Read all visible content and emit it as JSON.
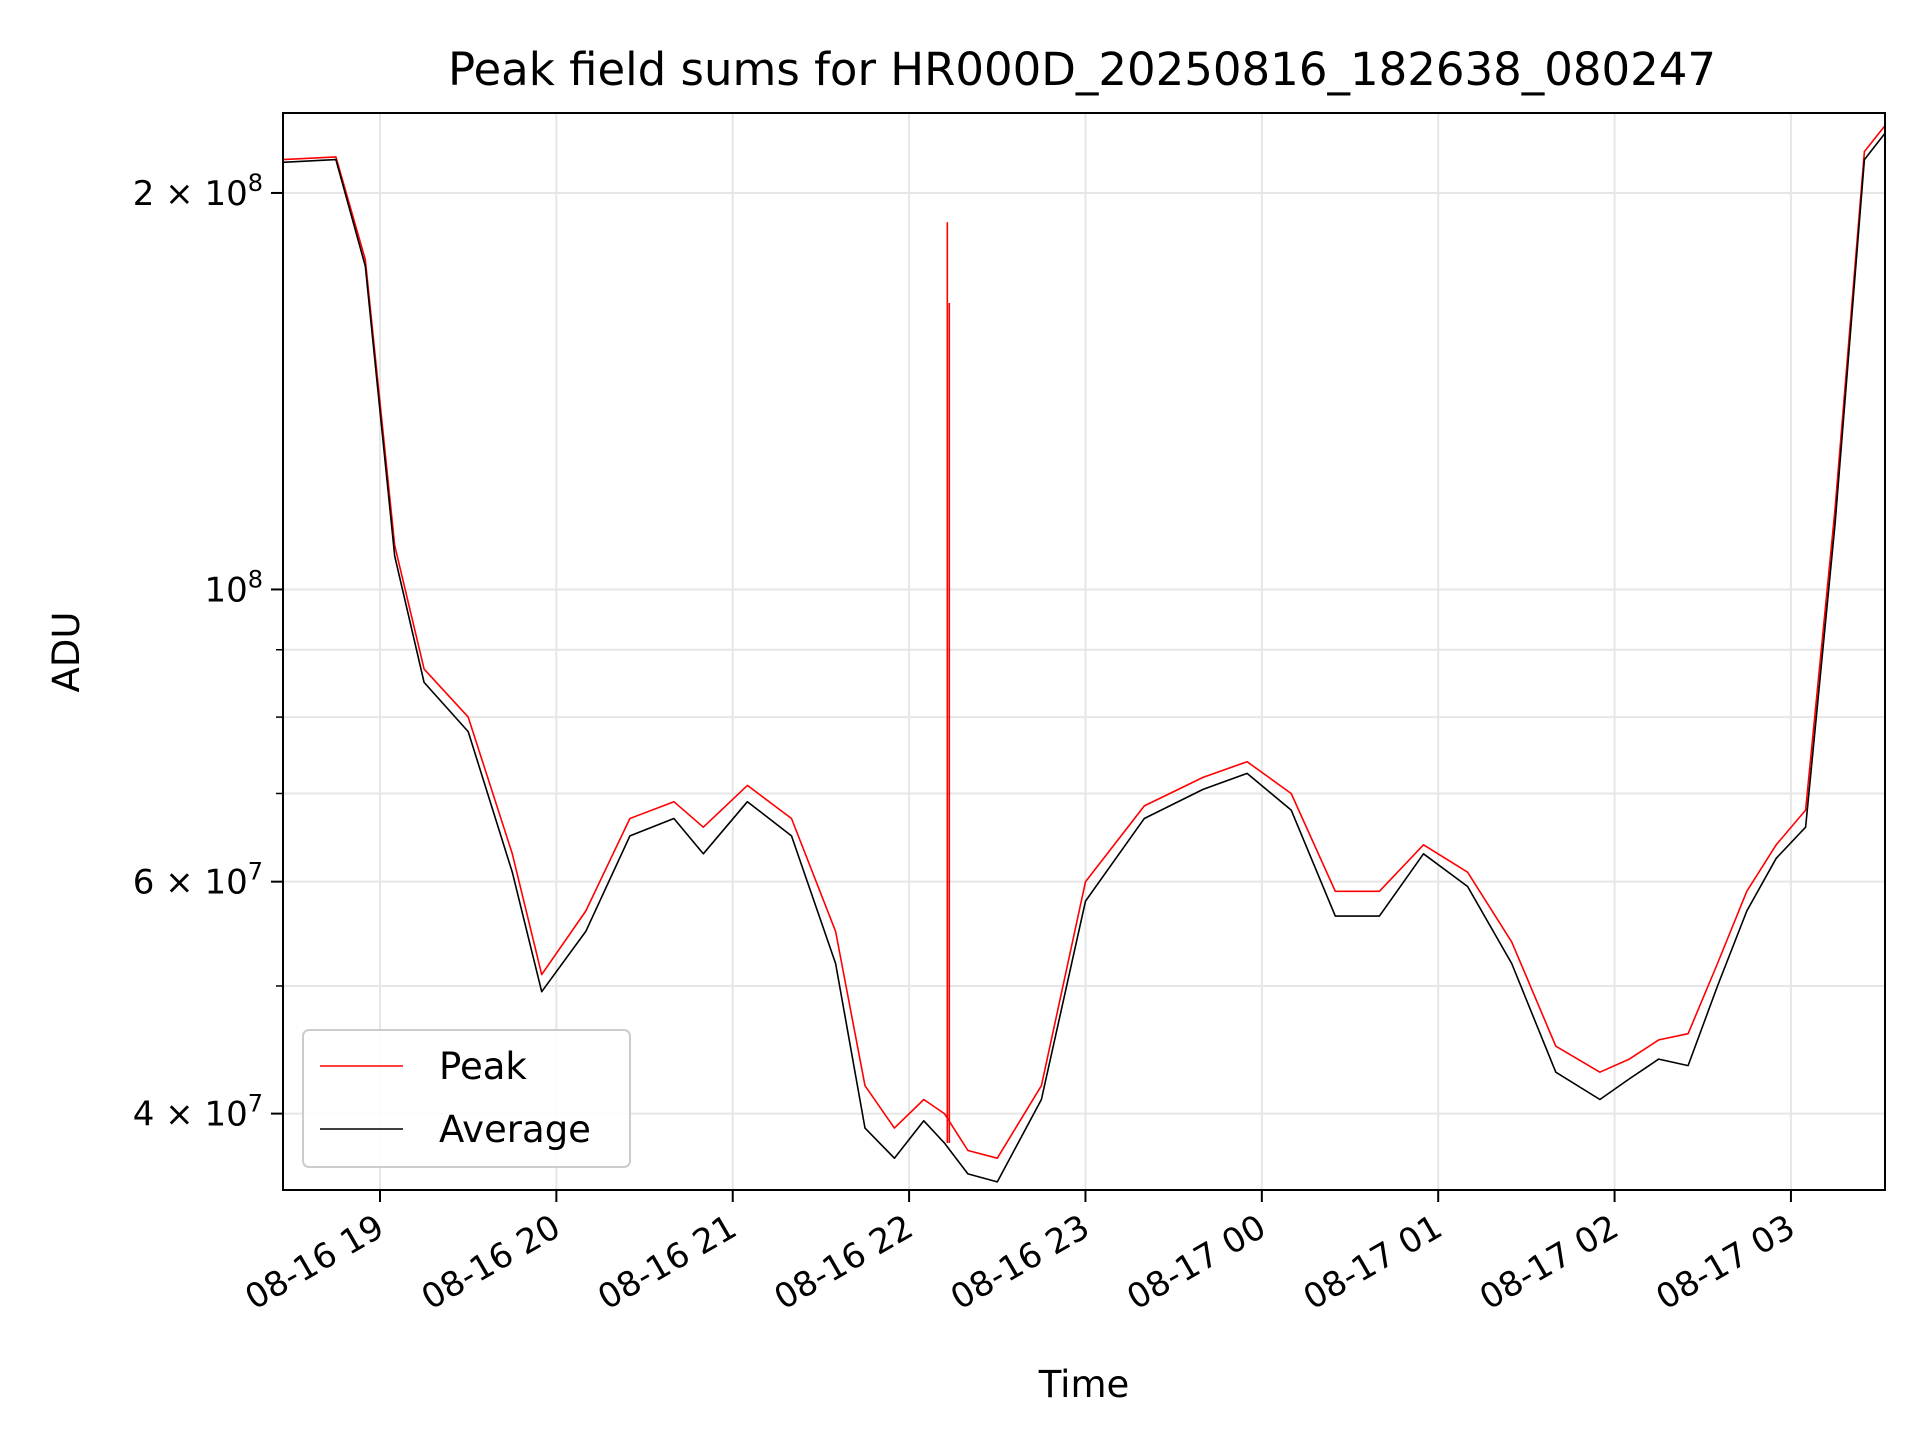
{
  "chart_data": {
    "type": "line",
    "title": "Peak field sums for HR000D_20250816_182638_080247",
    "xlabel": "Time",
    "ylabel": "ADU",
    "yscale": "log",
    "ylim": [
      35000000,
      230000000
    ],
    "xlim": [
      "2025-08-16T18:27",
      "2025-08-17T03:32"
    ],
    "grid": true,
    "legend_position": "lower-left",
    "x_ticks": [
      "08-16 19",
      "08-16 20",
      "08-16 21",
      "08-16 22",
      "08-16 23",
      "08-17 00",
      "08-17 01",
      "08-17 02",
      "08-17 03"
    ],
    "y_major_ticks": [
      {
        "value": 40000000,
        "mantissa": "4",
        "exponent": "7"
      },
      {
        "value": 60000000,
        "mantissa": "6",
        "exponent": "7"
      },
      {
        "value": 100000000,
        "mantissa": "",
        "exponent": "8"
      },
      {
        "value": 200000000,
        "mantissa": "2",
        "exponent": "8"
      }
    ],
    "y_minor_gridlines": [
      50000000,
      70000000,
      80000000,
      90000000
    ],
    "series": [
      {
        "name": "Peak",
        "color": "#ff0000",
        "x": [
          "2025-08-16T18:27",
          "2025-08-16T18:45",
          "2025-08-16T18:55",
          "2025-08-16T19:05",
          "2025-08-16T19:15",
          "2025-08-16T19:30",
          "2025-08-16T19:45",
          "2025-08-16T19:55",
          "2025-08-16T20:10",
          "2025-08-16T20:25",
          "2025-08-16T20:40",
          "2025-08-16T20:50",
          "2025-08-16T21:05",
          "2025-08-16T21:20",
          "2025-08-16T21:35",
          "2025-08-16T21:45",
          "2025-08-16T21:55",
          "2025-08-16T22:05",
          "2025-08-16T22:12",
          "2025-08-16T22:20",
          "2025-08-16T22:30",
          "2025-08-16T22:45",
          "2025-08-16T23:00",
          "2025-08-16T23:20",
          "2025-08-16T23:40",
          "2025-08-16T23:55",
          "2025-08-17T00:10",
          "2025-08-17T00:25",
          "2025-08-17T00:40",
          "2025-08-17T00:55",
          "2025-08-17T01:10",
          "2025-08-17T01:25",
          "2025-08-17T01:40",
          "2025-08-17T01:55",
          "2025-08-17T02:05",
          "2025-08-17T02:15",
          "2025-08-17T02:25",
          "2025-08-17T02:35",
          "2025-08-17T02:45",
          "2025-08-17T02:55",
          "2025-08-17T03:05",
          "2025-08-17T03:15",
          "2025-08-17T03:25",
          "2025-08-17T03:32"
        ],
        "values": [
          212000000,
          213000000,
          178000000,
          108000000,
          87000000,
          80000000,
          63000000,
          51000000,
          57000000,
          67000000,
          69000000,
          66000000,
          71000000,
          67000000,
          55000000,
          42000000,
          39000000,
          41000000,
          40000000,
          37500000,
          37000000,
          42000000,
          60000000,
          68500000,
          72000000,
          74000000,
          70000000,
          59000000,
          59000000,
          64000000,
          61000000,
          54000000,
          45000000,
          43000000,
          44000000,
          45500000,
          46000000,
          52000000,
          59000000,
          64000000,
          68000000,
          115000000,
          215000000,
          225000000
        ]
      },
      {
        "name": "Average",
        "color": "#000000",
        "x": [
          "2025-08-16T18:27",
          "2025-08-16T18:45",
          "2025-08-16T18:55",
          "2025-08-16T19:05",
          "2025-08-16T19:15",
          "2025-08-16T19:30",
          "2025-08-16T19:45",
          "2025-08-16T19:55",
          "2025-08-16T20:10",
          "2025-08-16T20:25",
          "2025-08-16T20:40",
          "2025-08-16T20:50",
          "2025-08-16T21:05",
          "2025-08-16T21:20",
          "2025-08-16T21:35",
          "2025-08-16T21:45",
          "2025-08-16T21:55",
          "2025-08-16T22:05",
          "2025-08-16T22:12",
          "2025-08-16T22:20",
          "2025-08-16T22:30",
          "2025-08-16T22:45",
          "2025-08-16T23:00",
          "2025-08-16T23:20",
          "2025-08-16T23:40",
          "2025-08-16T23:55",
          "2025-08-17T00:10",
          "2025-08-17T00:25",
          "2025-08-17T00:40",
          "2025-08-17T00:55",
          "2025-08-17T01:10",
          "2025-08-17T01:25",
          "2025-08-17T01:40",
          "2025-08-17T01:55",
          "2025-08-17T02:05",
          "2025-08-17T02:15",
          "2025-08-17T02:25",
          "2025-08-17T02:35",
          "2025-08-17T02:45",
          "2025-08-17T02:55",
          "2025-08-17T03:05",
          "2025-08-17T03:15",
          "2025-08-17T03:25",
          "2025-08-17T03:32"
        ],
        "values": [
          211000000,
          212000000,
          176000000,
          106000000,
          85000000,
          78000000,
          61000000,
          49500000,
          55000000,
          65000000,
          67000000,
          63000000,
          69000000,
          65000000,
          52000000,
          39000000,
          37000000,
          39500000,
          38000000,
          36000000,
          35500000,
          41000000,
          58000000,
          67000000,
          70500000,
          72500000,
          68000000,
          56500000,
          56500000,
          63000000,
          59500000,
          52000000,
          43000000,
          41000000,
          42500000,
          44000000,
          43500000,
          50000000,
          57000000,
          62500000,
          66000000,
          112000000,
          212000000,
          222000000
        ]
      }
    ],
    "spikes": [
      {
        "series": "Peak",
        "x": "2025-08-16T22:13",
        "value": 190000000
      },
      {
        "series": "Peak",
        "x": "2025-08-16T22:13",
        "value": 165000000
      }
    ]
  }
}
